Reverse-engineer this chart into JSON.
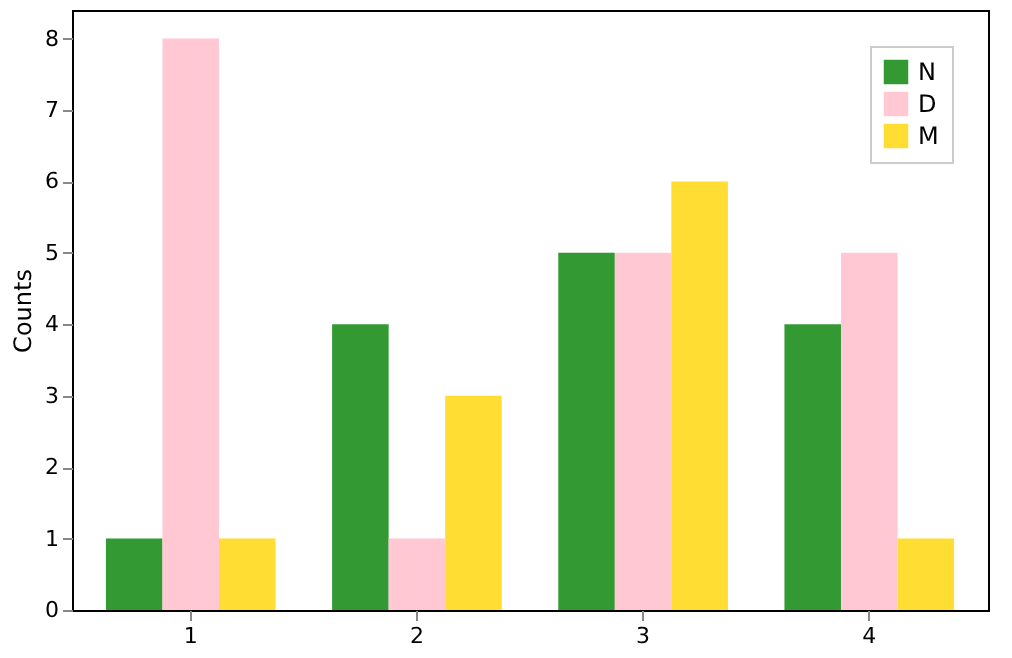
{
  "chart_data": {
    "type": "bar",
    "ylabel": "Counts",
    "categories": [
      "1",
      "2",
      "3",
      "4"
    ],
    "series": [
      {
        "name": "N",
        "color": "#339933",
        "values": [
          1,
          4,
          5,
          4
        ]
      },
      {
        "name": "D",
        "color": "#ffc8d2",
        "values": [
          8,
          1,
          5,
          5
        ]
      },
      {
        "name": "M",
        "color": "#ffdd33",
        "values": [
          1,
          3,
          6,
          1
        ]
      }
    ],
    "ylim": [
      0,
      8.4
    ],
    "yticks": [
      0,
      1,
      2,
      3,
      4,
      5,
      6,
      7,
      8
    ],
    "grid": false,
    "legend": "top right"
  }
}
